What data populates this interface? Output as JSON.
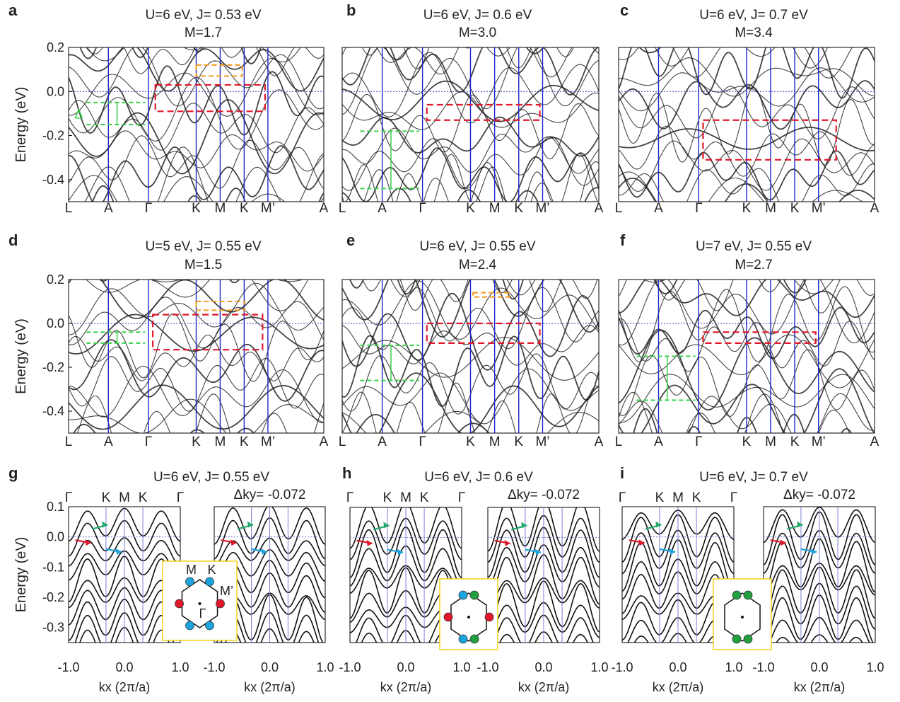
{
  "figure": {
    "y_axis_label": "Energy (eV)"
  },
  "chart_data": [
    {
      "type": "line",
      "panel": "a",
      "title": "U=6 eV, J= 0.53 eV",
      "subtitle": "M=1.7",
      "ylabel": "Energy (eV)",
      "ylim": [
        -0.5,
        0.2
      ],
      "yticks": [
        "0.2",
        "0.0",
        "-0.2",
        "-0.4"
      ],
      "kpoints": [
        "L",
        "A",
        "Γ",
        "K",
        "M",
        "K",
        "M’",
        "A"
      ],
      "annotation": "Δ",
      "gap_marker": [
        -0.05,
        -0.15
      ],
      "fermi_level": 0.0
    },
    {
      "type": "line",
      "panel": "b",
      "title": "U=6 eV, J= 0.6 eV",
      "subtitle": "M=3.0",
      "ylim": [
        -0.5,
        0.2
      ],
      "kpoints": [
        "L",
        "A",
        "Γ",
        "K",
        "M",
        "K",
        "M’",
        "A"
      ],
      "gap_marker": [
        -0.18,
        -0.44
      ],
      "fermi_level": 0.0
    },
    {
      "type": "line",
      "panel": "c",
      "title": "U=6 eV, J= 0.7 eV",
      "subtitle": "M=3.4",
      "ylim": [
        -0.5,
        0.2
      ],
      "kpoints": [
        "L",
        "A",
        "Γ",
        "K",
        "M",
        "K",
        "M’",
        "A"
      ],
      "fermi_level": 0.0
    },
    {
      "type": "line",
      "panel": "d",
      "title": "U=5 eV, J= 0.55 eV",
      "subtitle": "M=1.5",
      "ylabel": "Energy (eV)",
      "ylim": [
        -0.5,
        0.2
      ],
      "yticks": [
        "0.2",
        "0.0",
        "-0.2",
        "-0.4"
      ],
      "kpoints": [
        "L",
        "A",
        "Γ",
        "K",
        "M",
        "K",
        "M’",
        "A"
      ],
      "gap_marker": [
        -0.04,
        -0.09
      ],
      "fermi_level": 0.0
    },
    {
      "type": "line",
      "panel": "e",
      "title": "U=6 eV, J= 0.55 eV",
      "subtitle": "M=2.4",
      "ylim": [
        -0.5,
        0.2
      ],
      "kpoints": [
        "L",
        "A",
        "Γ",
        "K",
        "M",
        "K",
        "M’",
        "A"
      ],
      "gap_marker": [
        -0.1,
        -0.26
      ],
      "fermi_level": 0.0
    },
    {
      "type": "line",
      "panel": "f",
      "title": "U=7 eV, J= 0.55 eV",
      "subtitle": "M=2.7",
      "ylim": [
        -0.5,
        0.2
      ],
      "kpoints": [
        "L",
        "A",
        "Γ",
        "K",
        "M",
        "K",
        "M’",
        "A"
      ],
      "gap_marker": [
        -0.15,
        -0.35
      ],
      "fermi_level": 0.0
    },
    {
      "type": "line",
      "panel": "g",
      "title": "U=6 eV, J= 0.55 eV",
      "ylabel": "Energy (eV)",
      "ylim": [
        -0.35,
        0.1
      ],
      "yticks": [
        "0.1",
        "0.0",
        "-0.1",
        "-0.2",
        "-0.3"
      ],
      "xlabel": "kx (2π/a)",
      "xlim": [
        -1.0,
        1.0
      ],
      "xticks": [
        "-1.0",
        "0.0",
        "1.0"
      ],
      "kpoints": [
        "Γ",
        "K",
        "M",
        "K",
        "Γ"
      ],
      "dky": "Δky= -0.072",
      "bz_labels": [
        "M",
        "K",
        "M’",
        "Γ"
      ]
    },
    {
      "type": "line",
      "panel": "h",
      "title": "U=6 eV, J= 0.6 eV",
      "ylim": [
        -0.35,
        0.1
      ],
      "xlabel": "kx (2π/a)",
      "xlim": [
        -1.0,
        1.0
      ],
      "xticks": [
        "-1.0",
        "0.0",
        "1.0"
      ],
      "kpoints": [
        "Γ",
        "K",
        "M",
        "K",
        "Γ"
      ],
      "dky": "Δky= -0.072"
    },
    {
      "type": "line",
      "panel": "i",
      "title": "U=6 eV, J= 0.7 eV",
      "ylim": [
        -0.35,
        0.1
      ],
      "xlabel": "kx (2π/a)",
      "xlim": [
        -1.0,
        1.0
      ],
      "xticks": [
        "-1.0",
        "0.0",
        "1.0"
      ],
      "kpoints": [
        "Γ",
        "K",
        "M",
        "K",
        "Γ"
      ],
      "dky": "Δky= -0.072"
    }
  ]
}
